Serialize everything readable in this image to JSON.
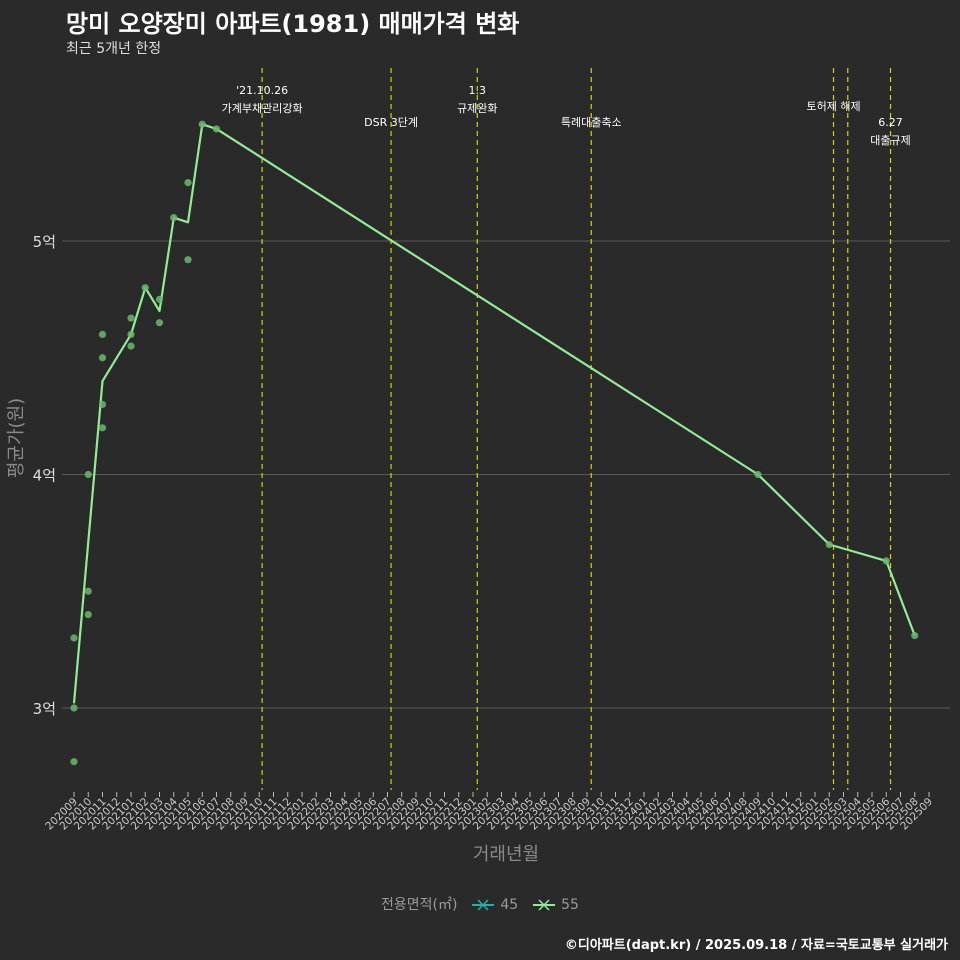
{
  "title": "망미 오양장미 아파트(1981) 매매가격 변화",
  "subtitle": "최근 5개년 한정",
  "caption": "©디아파트(dapt.kr) / 2025.09.18 / 자료=국토교통부 실거래가",
  "colors": {
    "background": "#2b2a2a",
    "grid": "#5a5a5a",
    "line_55": "#90ee90",
    "line_45": "#20b2aa",
    "points": "#66bb6a",
    "vline": "#d4d400"
  },
  "legend": {
    "title": "전용면적(㎡)",
    "items": [
      {
        "label": "45",
        "color": "#20b2aa"
      },
      {
        "label": "55",
        "color": "#90ee90"
      }
    ]
  },
  "chart_data": {
    "type": "line",
    "title": "망미 오양장미 아파트(1981) 매매가격 변화",
    "xlabel": "거래년월",
    "ylabel": "평균가(원)",
    "ylim": [
      2.65,
      5.75
    ],
    "yticks": [
      {
        "value": 3,
        "label": "3억"
      },
      {
        "value": 4,
        "label": "4억"
      },
      {
        "value": 5,
        "label": "5억"
      }
    ],
    "x_categories": [
      "202009",
      "202010",
      "202011",
      "202012",
      "202101",
      "202102",
      "202103",
      "202104",
      "202105",
      "202106",
      "202107",
      "202108",
      "202109",
      "202110",
      "202111",
      "202112",
      "202201",
      "202202",
      "202203",
      "202204",
      "202205",
      "202206",
      "202207",
      "202208",
      "202209",
      "202210",
      "202211",
      "202212",
      "202301",
      "202302",
      "202303",
      "202304",
      "202305",
      "202306",
      "202307",
      "202308",
      "202309",
      "202310",
      "202311",
      "202312",
      "202401",
      "202402",
      "202403",
      "202404",
      "202405",
      "202406",
      "202407",
      "202408",
      "202409",
      "202410",
      "202411",
      "202412",
      "202501",
      "202502",
      "202503",
      "202504",
      "202505",
      "202506",
      "202507",
      "202508",
      "202509"
    ],
    "series": [
      {
        "name": "55",
        "points": [
          {
            "x": "202009",
            "y": 3.02
          },
          {
            "x": "202011",
            "y": 4.4
          },
          {
            "x": "202101",
            "y": 4.6
          },
          {
            "x": "202102",
            "y": 4.8
          },
          {
            "x": "202103",
            "y": 4.7
          },
          {
            "x": "202104",
            "y": 5.1
          },
          {
            "x": "202105",
            "y": 5.08
          },
          {
            "x": "202106",
            "y": 5.5
          },
          {
            "x": "202107",
            "y": 5.48
          },
          {
            "x": "202409",
            "y": 4.0
          },
          {
            "x": "202502",
            "y": 3.7
          },
          {
            "x": "202506",
            "y": 3.63
          },
          {
            "x": "202508",
            "y": 3.31
          }
        ]
      }
    ],
    "scatter": [
      {
        "x": "202009",
        "y": 2.77
      },
      {
        "x": "202009",
        "y": 3.0
      },
      {
        "x": "202009",
        "y": 3.3
      },
      {
        "x": "202010",
        "y": 3.4
      },
      {
        "x": "202010",
        "y": 3.5
      },
      {
        "x": "202010",
        "y": 4.0
      },
      {
        "x": "202011",
        "y": 4.2
      },
      {
        "x": "202011",
        "y": 4.3
      },
      {
        "x": "202011",
        "y": 4.5
      },
      {
        "x": "202011",
        "y": 4.6
      },
      {
        "x": "202101",
        "y": 4.55
      },
      {
        "x": "202101",
        "y": 4.6
      },
      {
        "x": "202101",
        "y": 4.67
      },
      {
        "x": "202102",
        "y": 4.8
      },
      {
        "x": "202103",
        "y": 4.65
      },
      {
        "x": "202103",
        "y": 4.75
      },
      {
        "x": "202104",
        "y": 5.1
      },
      {
        "x": "202105",
        "y": 4.92
      },
      {
        "x": "202105",
        "y": 5.25
      },
      {
        "x": "202106",
        "y": 5.5
      },
      {
        "x": "202107",
        "y": 5.48
      },
      {
        "x": "202409",
        "y": 4.0
      },
      {
        "x": "202502",
        "y": 3.7
      },
      {
        "x": "202506",
        "y": 3.63
      },
      {
        "x": "202508",
        "y": 3.31
      }
    ],
    "vlines": [
      {
        "x": 13.2,
        "lines": [
          "'21.10.26",
          "가계부채관리강화"
        ],
        "level": 0
      },
      {
        "x": 22.25,
        "lines": [
          "DSR 3단계"
        ],
        "level": 1
      },
      {
        "x": 28.3,
        "lines": [
          "1.3",
          "규제완화"
        ],
        "level": 0
      },
      {
        "x": 36.3,
        "lines": [
          "특례대출축소"
        ],
        "level": 1
      },
      {
        "x": 53.3,
        "lines": [
          "토허제 해제"
        ],
        "level": 0.5
      },
      {
        "x": 54.3,
        "lines": [],
        "level": 0
      },
      {
        "x": 57.3,
        "lines": [
          "6.27",
          "대출규제"
        ],
        "level": 1
      }
    ]
  }
}
